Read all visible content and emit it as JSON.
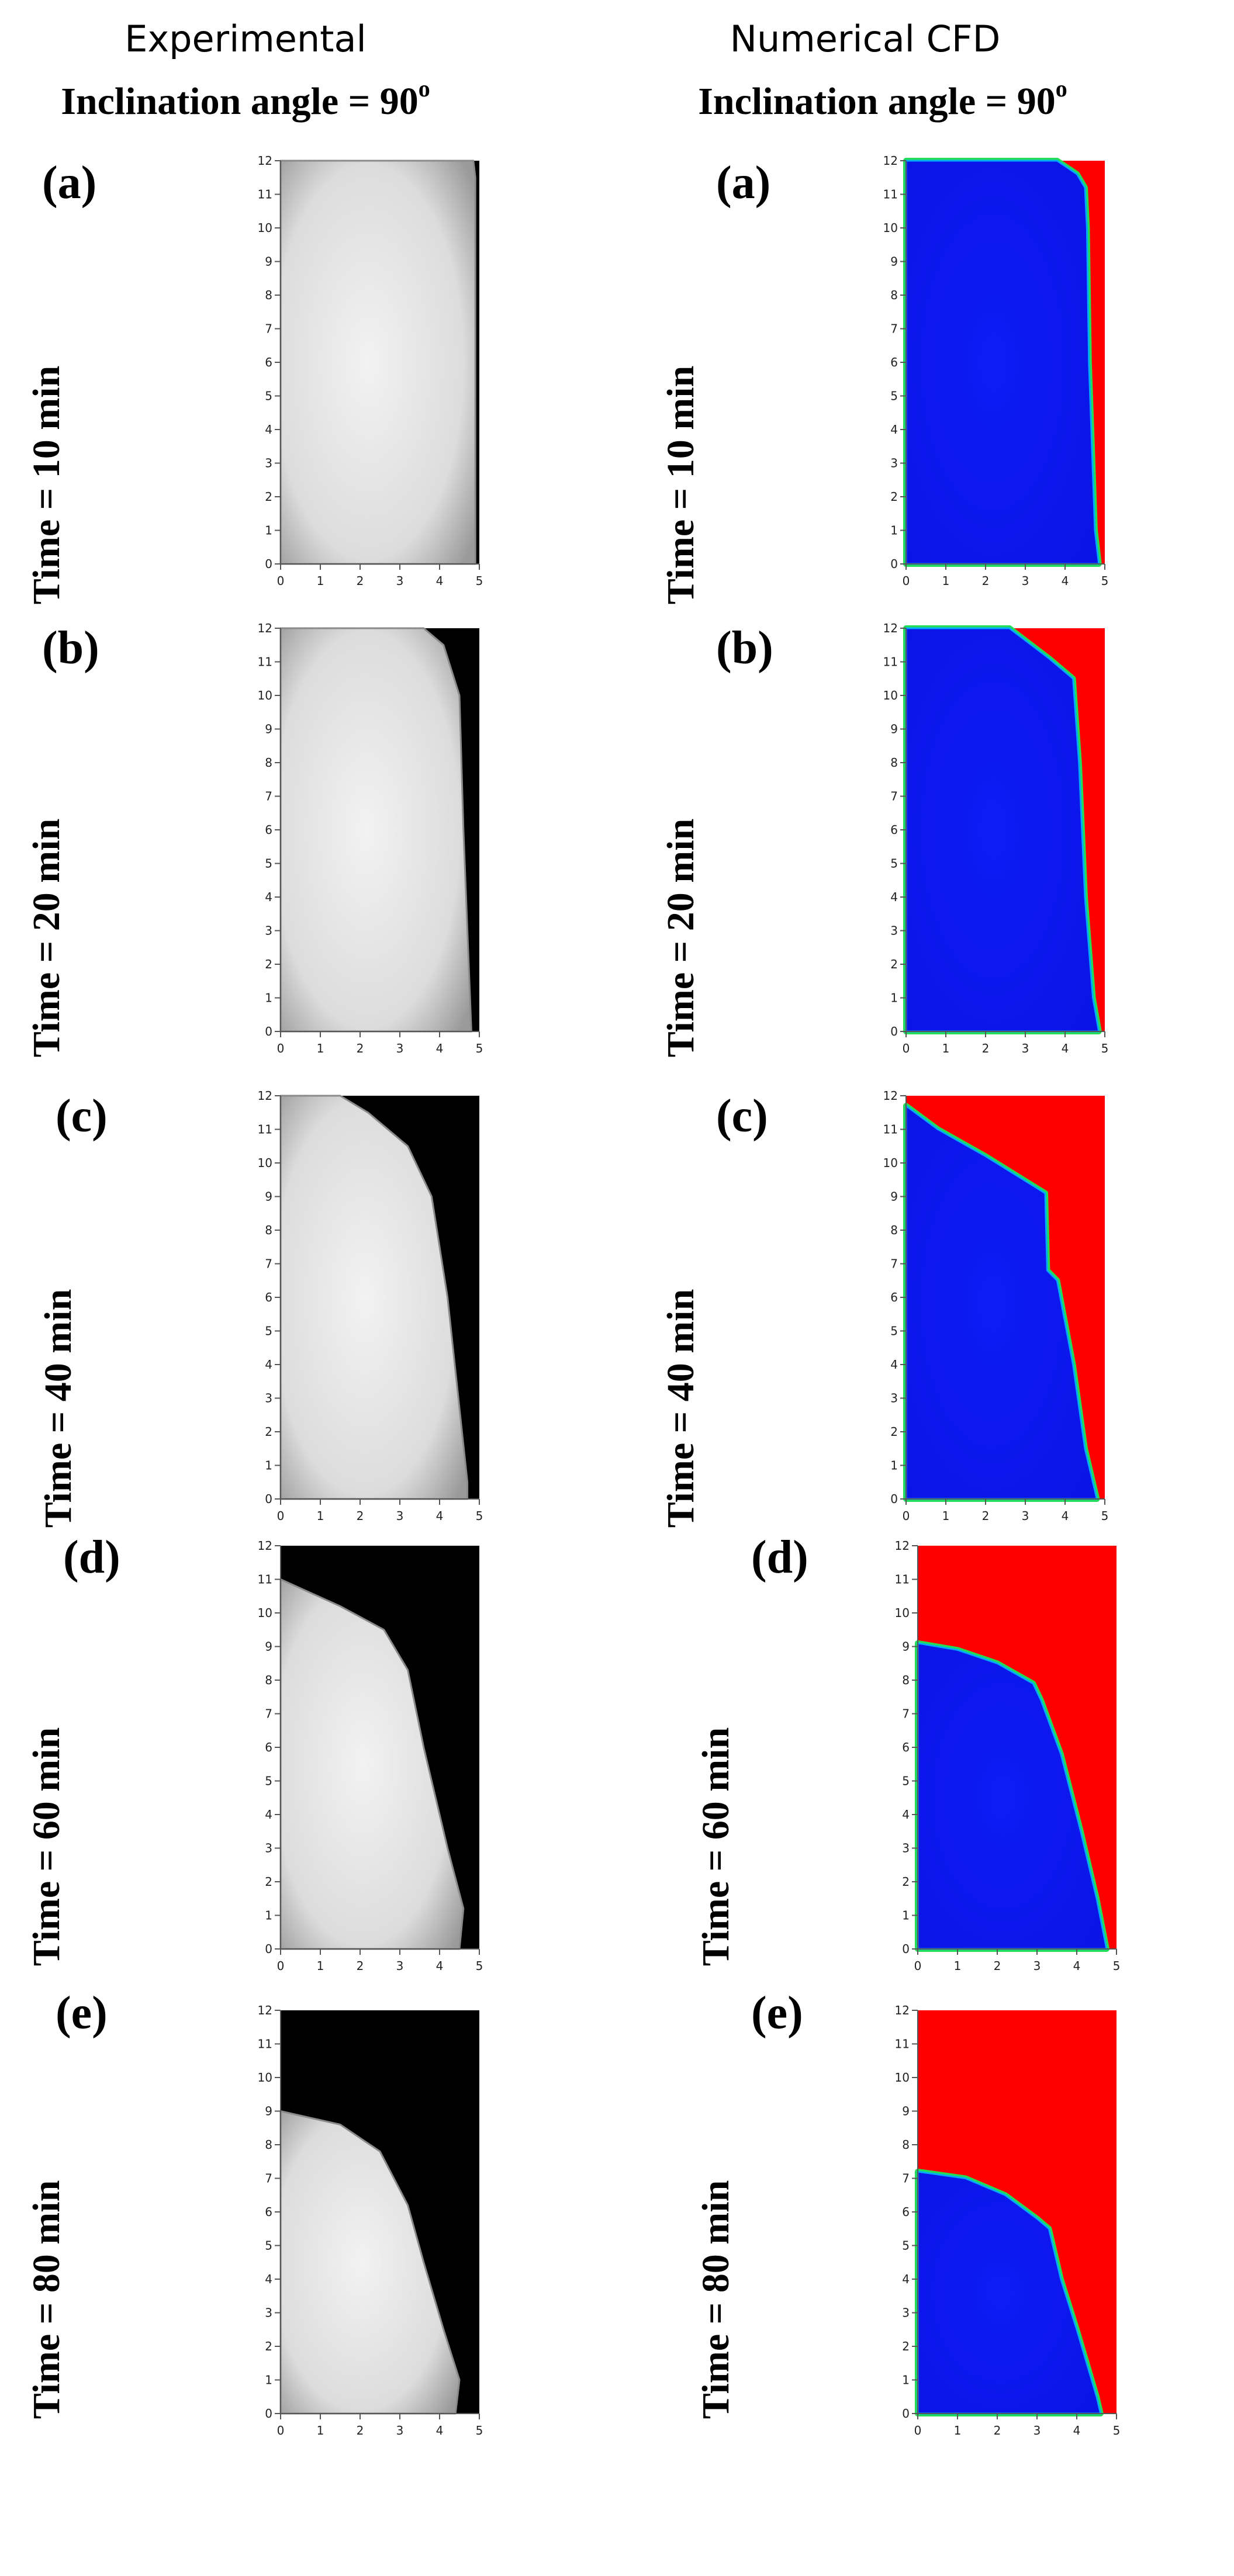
{
  "headers": {
    "experimental": "Experimental",
    "numerical": "Numerical CFD",
    "inclination_prefix": "Inclination angle = 90",
    "inclination_sup": "o"
  },
  "rows": [
    {
      "label": "(a)",
      "time": "Time = 10 min"
    },
    {
      "label": "(b)",
      "time": "Time = 20 min"
    },
    {
      "label": "(c)",
      "time": "Time = 40 min"
    },
    {
      "label": "(d)",
      "time": "Time = 60 min"
    },
    {
      "label": "(e)",
      "time": "Time = 80 min"
    }
  ],
  "colors": {
    "solid": "#0a14e6",
    "liquid": "#ff0000",
    "interface": "#22dd55",
    "experimental_background": "#000000",
    "experimental_solid": "#dcdcdc"
  },
  "axes": {
    "x_ticks": [
      "0",
      "1",
      "2",
      "3",
      "4",
      "5"
    ],
    "y_ticks": [
      "0",
      "1",
      "2",
      "3",
      "4",
      "5",
      "6",
      "7",
      "8",
      "9",
      "10",
      "11",
      "12"
    ],
    "xlim": [
      0,
      5
    ],
    "ylim": [
      0,
      12
    ]
  },
  "chart_data": [
    {
      "type": "area",
      "panel": "experimental-a",
      "xlim": [
        0,
        5
      ],
      "ylim": [
        0,
        12
      ],
      "boundary": [
        [
          0,
          12
        ],
        [
          4.85,
          12
        ],
        [
          4.9,
          11.5
        ],
        [
          4.9,
          0
        ],
        [
          0,
          0
        ]
      ]
    },
    {
      "type": "area",
      "panel": "experimental-b",
      "xlim": [
        0,
        5
      ],
      "ylim": [
        0,
        12
      ],
      "boundary": [
        [
          0,
          12
        ],
        [
          3.6,
          12
        ],
        [
          4.1,
          11.5
        ],
        [
          4.5,
          10
        ],
        [
          4.6,
          6
        ],
        [
          4.8,
          0
        ],
        [
          0,
          0
        ]
      ]
    },
    {
      "type": "area",
      "panel": "experimental-c",
      "xlim": [
        0,
        5
      ],
      "ylim": [
        0,
        12
      ],
      "boundary": [
        [
          0,
          12
        ],
        [
          1.5,
          12
        ],
        [
          2.2,
          11.5
        ],
        [
          3.2,
          10.5
        ],
        [
          3.8,
          9
        ],
        [
          4.2,
          6
        ],
        [
          4.7,
          0.5
        ],
        [
          4.7,
          0
        ],
        [
          0,
          0
        ]
      ]
    },
    {
      "type": "area",
      "panel": "experimental-d",
      "xlim": [
        0,
        5
      ],
      "ylim": [
        0,
        12
      ],
      "boundary": [
        [
          0,
          11
        ],
        [
          1.5,
          10.2
        ],
        [
          2.6,
          9.5
        ],
        [
          3.2,
          8.3
        ],
        [
          3.6,
          6
        ],
        [
          4.2,
          3
        ],
        [
          4.6,
          1.2
        ],
        [
          4.5,
          0
        ],
        [
          0,
          0
        ]
      ]
    },
    {
      "type": "area",
      "panel": "experimental-e",
      "xlim": [
        0,
        5
      ],
      "ylim": [
        0,
        12
      ],
      "boundary": [
        [
          0,
          9
        ],
        [
          1.5,
          8.6
        ],
        [
          2.5,
          7.8
        ],
        [
          3.2,
          6.2
        ],
        [
          3.6,
          4.5
        ],
        [
          4.1,
          2.5
        ],
        [
          4.5,
          1
        ],
        [
          4.4,
          0
        ],
        [
          0,
          0
        ]
      ]
    },
    {
      "type": "area",
      "panel": "numerical-a",
      "xlim": [
        0,
        5
      ],
      "ylim": [
        0,
        12
      ],
      "boundary": [
        [
          0,
          12
        ],
        [
          3.8,
          12
        ],
        [
          4.3,
          11.6
        ],
        [
          4.5,
          11.2
        ],
        [
          4.55,
          10
        ],
        [
          4.6,
          6
        ],
        [
          4.75,
          1
        ],
        [
          4.85,
          0
        ],
        [
          0,
          0
        ]
      ]
    },
    {
      "type": "area",
      "panel": "numerical-b",
      "xlim": [
        0,
        5
      ],
      "ylim": [
        0,
        12
      ],
      "boundary": [
        [
          0,
          12
        ],
        [
          2.6,
          12
        ],
        [
          3.6,
          11.1
        ],
        [
          4.2,
          10.5
        ],
        [
          4.35,
          8
        ],
        [
          4.5,
          4
        ],
        [
          4.7,
          1
        ],
        [
          4.85,
          0
        ],
        [
          0,
          0
        ]
      ]
    },
    {
      "type": "area",
      "panel": "numerical-c",
      "xlim": [
        0,
        5
      ],
      "ylim": [
        0,
        12
      ],
      "boundary": [
        [
          0,
          11.7
        ],
        [
          0.8,
          11
        ],
        [
          2,
          10.2
        ],
        [
          3.5,
          9.1
        ],
        [
          3.55,
          6.8
        ],
        [
          3.8,
          6.5
        ],
        [
          4.2,
          4
        ],
        [
          4.5,
          1.5
        ],
        [
          4.8,
          0
        ],
        [
          0,
          0
        ]
      ]
    },
    {
      "type": "area",
      "panel": "numerical-d",
      "xlim": [
        0,
        5
      ],
      "ylim": [
        0,
        12
      ],
      "boundary": [
        [
          0,
          9.1
        ],
        [
          1,
          8.9
        ],
        [
          2,
          8.5
        ],
        [
          2.9,
          7.9
        ],
        [
          3.1,
          7.4
        ],
        [
          3.6,
          5.8
        ],
        [
          4.1,
          3.5
        ],
        [
          4.5,
          1.5
        ],
        [
          4.75,
          0
        ],
        [
          0,
          0
        ]
      ]
    },
    {
      "type": "area",
      "panel": "numerical-e",
      "xlim": [
        0,
        5
      ],
      "ylim": [
        0,
        12
      ],
      "boundary": [
        [
          0,
          7.2
        ],
        [
          1.2,
          7
        ],
        [
          2.2,
          6.5
        ],
        [
          3,
          5.8
        ],
        [
          3.3,
          5.5
        ],
        [
          3.6,
          4
        ],
        [
          4,
          2.5
        ],
        [
          4.5,
          0.5
        ],
        [
          4.6,
          0
        ],
        [
          0,
          0
        ]
      ]
    }
  ]
}
